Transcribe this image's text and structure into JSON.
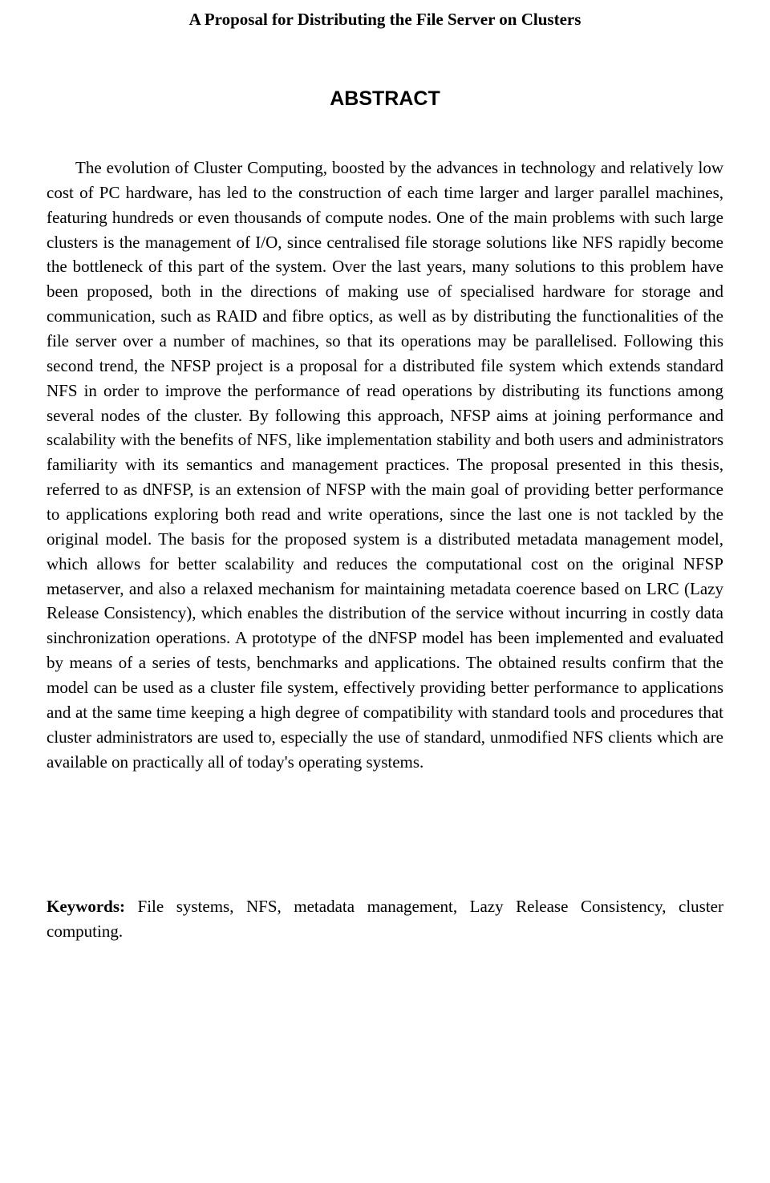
{
  "title": "A Proposal for Distributing the File Server on Clusters",
  "abstract_heading": "ABSTRACT",
  "abstract_body": "The evolution of Cluster Computing, boosted by the advances in technology and relatively low cost of PC hardware, has led to the construction of each time larger and larger parallel machines, featuring hundreds or even thousands of compute nodes. One of the main problems with such large clusters is the management of I/O, since centralised file storage solutions like NFS rapidly become the bottleneck of this part of the system. Over the last years, many solutions to this problem have been proposed, both in the directions of making use of specialised hardware for storage and communication, such as RAID and fibre optics, as well as by distributing the functionalities of the file server over a number of machines, so that its operations may be parallelised. Following this second trend, the NFSP project is a proposal for a distributed file system which extends standard NFS in order to improve the performance of read operations by distributing its functions among several nodes of the cluster. By following this approach, NFSP aims at joining performance and scalability with the benefits of NFS, like implementation stability and both users and administrators familiarity with its semantics and management practices. The proposal presented in this thesis, referred to as dNFSP, is an extension of NFSP with the main goal of providing better performance to applications exploring both read and write operations, since the last one is not tackled by the original model. The basis for the proposed system is a distributed metadata management model, which allows for better scalability and reduces the computational cost on the original NFSP metaserver, and also a relaxed mechanism for maintaining metadata coerence based on LRC (Lazy Release Consistency), which enables the distribution of the service without incurring in costly data sinchronization operations. A prototype of the dNFSP model has been implemented and evaluated by means of a series of tests, benchmarks and applications. The obtained results confirm that the model can be used as a cluster file system, effectively providing better performance to applications and at the same time keeping a high degree of compatibility with standard tools and procedures that cluster administrators are used to, especially the use of standard, unmodified NFS clients which are available on practically all of today's operating systems.",
  "keywords_label": "Keywords:",
  "keywords_text": " File systems, NFS, metadata management, Lazy Release Consistency, cluster computing."
}
